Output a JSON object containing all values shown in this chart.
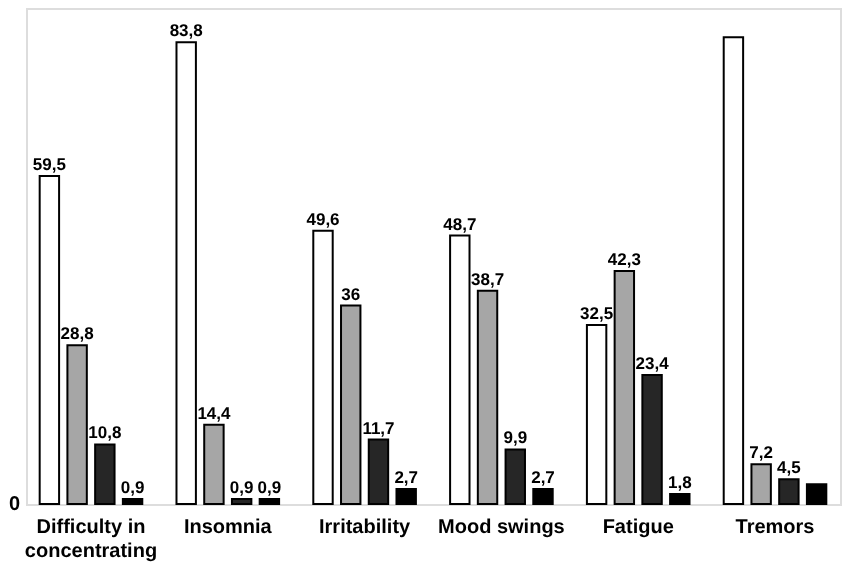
{
  "chart_data": {
    "type": "bar",
    "categories": [
      "Difficulty in concentrating",
      "Insomnia",
      "Irritability",
      "Mood swings",
      "Fatigue",
      "Tremors"
    ],
    "series": [
      {
        "color": "#ffffff",
        "values": [
          59.5,
          83.8,
          49.6,
          48.7,
          32.5,
          84.7
        ],
        "value_labels": [
          "59,5",
          "83,8",
          "49,6",
          "48,7",
          "32,5",
          null
        ]
      },
      {
        "color": "#a6a6a6",
        "values": [
          28.8,
          14.4,
          36,
          38.7,
          42.3,
          7.2
        ],
        "value_labels": [
          "28,8",
          "14,4",
          "36",
          "38,7",
          "42,3",
          "7,2"
        ]
      },
      {
        "color": "#262626",
        "values": [
          10.8,
          0.9,
          11.7,
          9.9,
          23.4,
          4.5
        ],
        "value_labels": [
          "10,8",
          "0,9",
          "11,7",
          "9,9",
          "23,4",
          "4,5"
        ]
      },
      {
        "color": "#000000",
        "values": [
          0.9,
          0.9,
          2.7,
          2.7,
          1.8,
          3.6
        ],
        "value_labels": [
          "0,9",
          "0,9",
          "2,7",
          "2,7",
          "1,8",
          null
        ]
      }
    ],
    "ylim": [
      0,
      90
    ],
    "annotations": [
      "0"
    ],
    "legend": false
  }
}
